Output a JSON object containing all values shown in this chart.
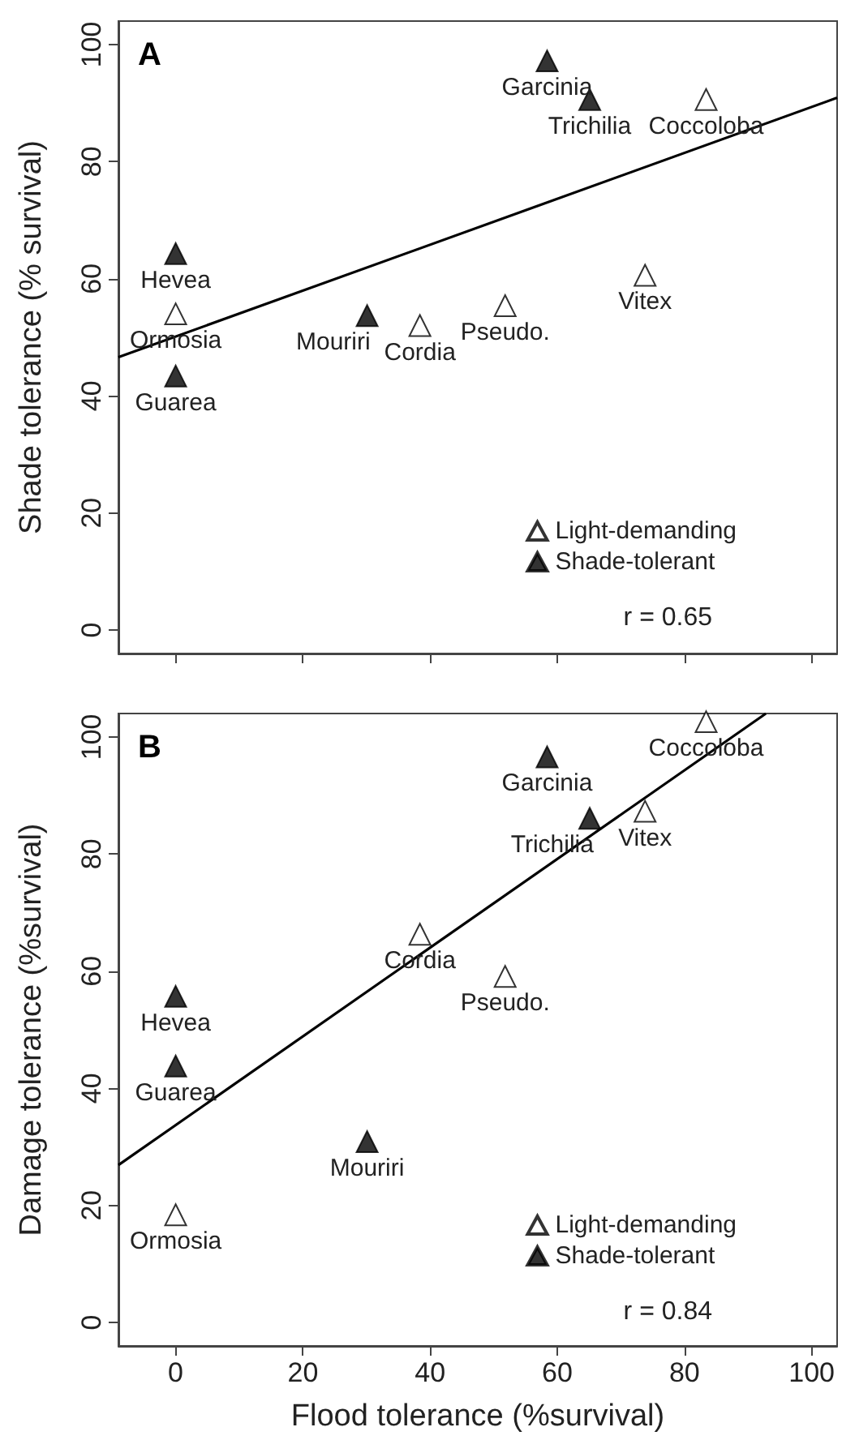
{
  "chart_data": [
    {
      "type": "scatter",
      "title": "A",
      "ylabel": "Shade tolerance (% survival)",
      "xlim": [
        -9,
        104
      ],
      "xticks": [
        0,
        20,
        40,
        60,
        80,
        100
      ],
      "ylim": [
        -4,
        104
      ],
      "yticks": [
        0,
        20,
        40,
        60,
        80,
        100
      ],
      "tick_labels": "y",
      "legend": "bottom right",
      "grid": false,
      "series": [
        {
          "name": "Light-demanding",
          "color": "#ffffff",
          "marker": "triangle",
          "x": [
            0,
            38.4,
            51.8,
            73.8,
            83.4
          ],
          "values": [
            54,
            52,
            55.4,
            60.6,
            90.6
          ]
        },
        {
          "name": "Shade-tolerant",
          "color": "#000000",
          "marker": "triangle",
          "x": [
            0,
            0,
            30.1,
            58.4,
            65.1
          ],
          "values": [
            64.3,
            43.4,
            53.7,
            97.2,
            90.6
          ]
        },
        {
          "type": "line",
          "color": "#000000",
          "x": [
            -9,
            104
          ],
          "values": [
            46.6,
            90.9
          ]
        }
      ],
      "annotations": [
        {
          "text": "Ormosia",
          "x": 0,
          "y": 54
        },
        {
          "text": "Cordia",
          "x": 38.4,
          "y": 52
        },
        {
          "text": "Pseudo.",
          "x": 51.8,
          "y": 55.4
        },
        {
          "text": "Vitex",
          "x": 73.8,
          "y": 60.6
        },
        {
          "text": "Coccoloba",
          "x": 83.4,
          "y": 90.6
        },
        {
          "text": "Hevea",
          "x": 0,
          "y": 64.3
        },
        {
          "text": "Guarea",
          "x": 0,
          "y": 43.4
        },
        {
          "text": "Mouriri",
          "x": 30.1,
          "y": 53.7
        },
        {
          "text": "Garcinia",
          "x": 58.4,
          "y": 97.2
        },
        {
          "text": "Trichilia",
          "x": 65.1,
          "y": 90.6
        },
        "r = 0.65"
      ]
    },
    {
      "type": "scatter",
      "title": "B",
      "xlabel": "Flood tolerance (%survival)",
      "ylabel": "Damage tolerance (%survival)",
      "xlim": [
        -9,
        104
      ],
      "xticks": [
        0,
        20,
        40,
        60,
        80,
        100
      ],
      "ylim": [
        -4,
        104
      ],
      "yticks": [
        0,
        20,
        40,
        60,
        80,
        100
      ],
      "legend": "bottom right",
      "grid": false,
      "series": [
        {
          "name": "Light-demanding",
          "color": "#ffffff",
          "marker": "triangle",
          "x": [
            0,
            38.4,
            51.8,
            73.8,
            83.4
          ],
          "values": [
            18.4,
            66.3,
            59.1,
            87.3,
            102.6
          ]
        },
        {
          "name": "Shade-tolerant",
          "color": "#000000",
          "marker": "triangle",
          "x": [
            0,
            0,
            30.1,
            58.4,
            65.1
          ],
          "values": [
            55.7,
            43.8,
            30.9,
            96.6,
            86.1
          ]
        },
        {
          "type": "line",
          "color": "#000000",
          "x": [
            -9,
            92.8
          ],
          "values": [
            26.9,
            104
          ]
        }
      ],
      "annotations": [
        {
          "text": "Ormosia",
          "x": 0,
          "y": 18.4
        },
        {
          "text": "Cordia",
          "x": 38.4,
          "y": 66.3
        },
        {
          "text": "Pseudo.",
          "x": 51.8,
          "y": 59.1
        },
        {
          "text": "Vitex",
          "x": 73.8,
          "y": 87.3
        },
        {
          "text": "Coccoloba",
          "x": 83.4,
          "y": 102.6
        },
        {
          "text": "Hevea",
          "x": 0,
          "y": 55.7
        },
        {
          "text": "Guarea",
          "x": 0,
          "y": 43.8
        },
        {
          "text": "Mouriri",
          "x": 30.1,
          "y": 30.9
        },
        {
          "text": "Garcinia",
          "x": 58.4,
          "y": 96.6
        },
        {
          "text": "Trichilia",
          "x": 65.1,
          "y": 86.1
        },
        "r = 0.84"
      ]
    }
  ]
}
